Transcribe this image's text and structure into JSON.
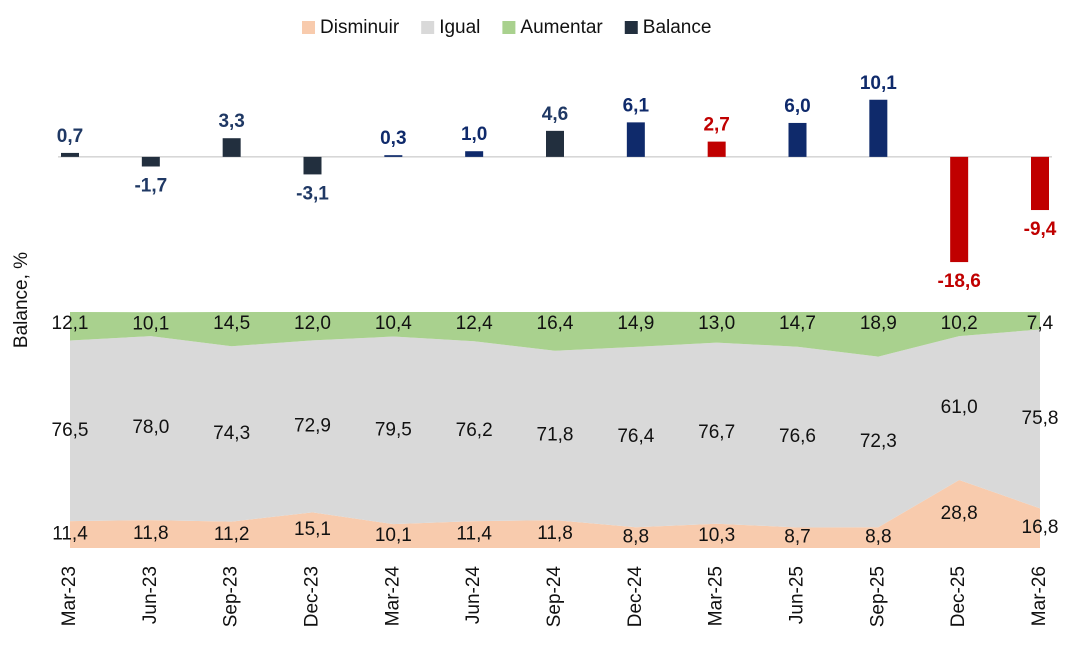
{
  "chart_data": [
    {
      "type": "bar",
      "ylabel": "Balance, %",
      "categories": [
        "Mar-23",
        "Jun-23",
        "Sep-23",
        "Dec-23",
        "Mar-24",
        "Jun-24",
        "Sep-24",
        "Dec-24",
        "Mar-25",
        "Jun-25",
        "Sep-25",
        "Dec-25",
        "Mar-26"
      ],
      "ylim": [
        -20,
        12
      ],
      "series": [
        {
          "name": "Balance",
          "color": "#222f3e",
          "colors": [
            "#222f3e",
            "#222f3e",
            "#222f3e",
            "#222f3e",
            "#0f2a6b",
            "#0f2a6b",
            "#222f3e",
            "#0f2a6b",
            "#c00000",
            "#0f2a6b",
            "#0f2a6b",
            "#c00000",
            "#c00000"
          ],
          "values": [
            0.7,
            -1.7,
            3.3,
            -3.1,
            0.3,
            1.0,
            4.6,
            6.1,
            2.7,
            6.0,
            10.1,
            -18.6,
            -9.4
          ],
          "value_labels": [
            "0,7",
            "-1,7",
            "3,3",
            "-3,1",
            "0,3",
            "1,0",
            "4,6",
            "6,1",
            "2,7",
            "6,0",
            "10,1",
            "-18,6",
            "-9,4"
          ]
        }
      ]
    },
    {
      "type": "area",
      "stacked": true,
      "ylim": [
        0,
        100
      ],
      "series": [
        {
          "name": "Disminuir",
          "color": "#f8cbad",
          "values": [
            11.4,
            11.8,
            11.2,
            15.1,
            10.1,
            11.4,
            11.8,
            8.8,
            10.3,
            8.7,
            8.8,
            28.8,
            16.8
          ],
          "value_labels": [
            "11,4",
            "11,8",
            "11,2",
            "15,1",
            "10,1",
            "11,4",
            "11,8",
            "8,8",
            "10,3",
            "8,7",
            "8,8",
            "28,8",
            "16,8"
          ]
        },
        {
          "name": "Igual",
          "color": "#d9d9d9",
          "values": [
            76.5,
            78.0,
            74.3,
            72.9,
            79.5,
            76.2,
            71.8,
            76.4,
            76.7,
            76.6,
            72.3,
            61.0,
            75.8
          ],
          "value_labels": [
            "76,5",
            "78,0",
            "74,3",
            "72,9",
            "79,5",
            "76,2",
            "71,8",
            "76,4",
            "76,7",
            "76,6",
            "72,3",
            "61,0",
            "75,8"
          ]
        },
        {
          "name": "Aumentar",
          "color": "#a9d18e",
          "values": [
            12.1,
            10.1,
            14.5,
            12.0,
            10.4,
            12.4,
            16.4,
            14.9,
            13.0,
            14.7,
            18.9,
            10.2,
            7.4
          ],
          "value_labels": [
            "12,1",
            "10,1",
            "14,5",
            "12,0",
            "10,4",
            "12,4",
            "16,4",
            "14,9",
            "13,0",
            "14,7",
            "18,9",
            "10,2",
            "7,4"
          ]
        }
      ]
    }
  ]
}
